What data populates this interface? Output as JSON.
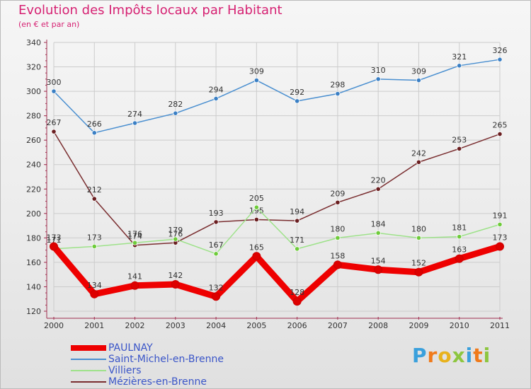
{
  "header": {
    "title": "Evolution des Impôts locaux par Habitant",
    "subtitle": "(en € et par an)"
  },
  "logo": {
    "text": "Proxiti",
    "colors": [
      "#3aa0dc",
      "#f07a1a",
      "#e8b21c",
      "#8dc63f",
      "#3aa0dc",
      "#f07a1a",
      "#8dc63f"
    ]
  },
  "chart_data": {
    "type": "line",
    "title": "Evolution des Impôts locaux par Habitant",
    "subtitle": "(en € et par an)",
    "xlabel": "",
    "ylabel": "",
    "ylim": [
      120,
      340
    ],
    "ytick_step": 20,
    "grid": true,
    "legend_position": "bottom-left",
    "categories": [
      "2000",
      "2001",
      "2002",
      "2003",
      "2004",
      "2005",
      "2006",
      "2007",
      "2008",
      "2009",
      "2010",
      "2011"
    ],
    "series": [
      {
        "name": "Saint-Michel-en-Brenne",
        "color": "#4a8fd0",
        "marker": "#3a7fc4",
        "thick": false,
        "values": [
          300,
          266,
          274,
          282,
          294,
          309,
          292,
          298,
          310,
          309,
          321,
          326
        ]
      },
      {
        "name": "Mézières-en-Brenne",
        "color": "#7a2e30",
        "marker": "#6a1e20",
        "thick": false,
        "values": [
          267,
          212,
          174,
          176,
          193,
          195,
          194,
          209,
          220,
          242,
          253,
          265
        ]
      },
      {
        "name": "Villiers",
        "color": "#9ee28a",
        "marker": "#6ecb3a",
        "thick": false,
        "values": [
          171,
          173,
          176,
          179,
          167,
          205,
          171,
          180,
          184,
          180,
          181,
          191
        ]
      },
      {
        "name": "PAULNAY",
        "color": "#ee0000",
        "marker": "#dd0000",
        "thick": true,
        "values": [
          173,
          134,
          141,
          142,
          132,
          165,
          128,
          158,
          154,
          152,
          163,
          173
        ]
      }
    ],
    "legend_order": [
      "PAULNAY",
      "Saint-Michel-en-Brenne",
      "Villiers",
      "Mézières-en-Brenne"
    ]
  }
}
